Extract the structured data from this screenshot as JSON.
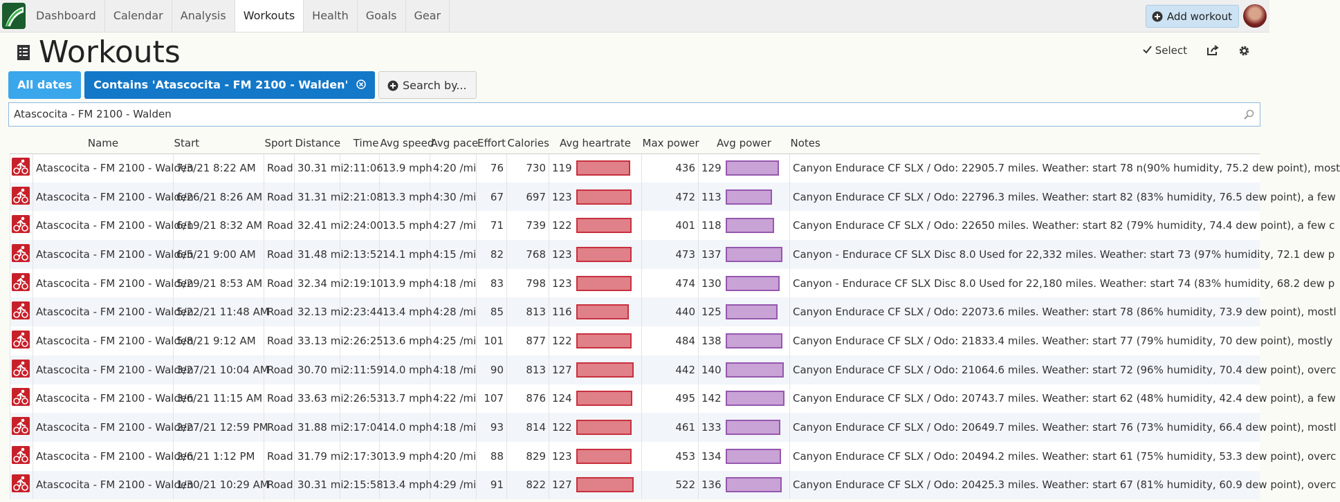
{
  "nav": {
    "tabs": [
      "Dashboard",
      "Calendar",
      "Analysis",
      "Workouts",
      "Health",
      "Goals",
      "Gear"
    ],
    "add_button": "Add workout"
  },
  "header": {
    "title": "Workouts",
    "select": "Select"
  },
  "filters": [
    "All dates",
    "Contains 'Atascocita - FM 2100 - Walden'",
    "Search by..."
  ],
  "search": "Atascocita - FM 2100 - Walden",
  "table": {
    "columns": [
      "Name",
      "Start",
      "Sport",
      "Distance",
      "Time",
      "Avg speed",
      "Avg pace",
      "Effort",
      "Calories",
      "Avg heartrate",
      "Max power",
      "Avg power",
      "Notes"
    ],
    "rows": [
      [
        "Atascocita - FM 2100 - Walden",
        "7/3/21 8:22 AM",
        "Road",
        "30.31 mi",
        "2:11:06",
        "13.9 mph",
        "4:20 /mi",
        76,
        730,
        119,
        436,
        129,
        "Canyon Endurace CF SLX / Odo: 22905.7 miles. Weather: start 78 n(90% humidity, 75.2 dew point), most"
      ],
      [
        "Atascocita - FM 2100 - Walden",
        "6/26/21 8:26 AM",
        "Road",
        "31.31 mi",
        "2:21:08",
        "13.3 mph",
        "4:30 /mi",
        67,
        697,
        123,
        472,
        113,
        "Canyon Endurace CF SLX / Odo: 22796.3 miles. Weather: start 82 (83% humidity, 76.5 dew point), a few"
      ],
      [
        "Atascocita - FM 2100 - Walden",
        "6/19/21 8:32 AM",
        "Road",
        "32.41 mi",
        "2:24:00",
        "13.5 mph",
        "4:27 /mi",
        71,
        739,
        122,
        401,
        118,
        "Canyon Endurace CF SLX / Odo: 22650 miles. Weather: start 82 (79% humidity, 74.4 dew point), a few c"
      ],
      [
        "Atascocita - FM 2100 - Walden",
        "6/5/21 9:00 AM",
        "Road",
        "31.48 mi",
        "2:13:52",
        "14.1 mph",
        "4:15 /mi",
        82,
        768,
        123,
        473,
        137,
        "Canyon - Endurace CF SLX Disc 8.0 Used for 22,332 miles. Weather: start 73 (97% humidity, 72.1 dew p"
      ],
      [
        "Atascocita - FM 2100 - Walden",
        "5/29/21 8:53 AM",
        "Road",
        "32.34 mi",
        "2:19:10",
        "13.9 mph",
        "4:18 /mi",
        83,
        798,
        123,
        474,
        130,
        "Canyon - Endurace CF SLX Disc 8.0 Used for 22,180 miles. Weather: start 74 (83% humidity, 68.2 dew p"
      ],
      [
        "Atascocita - FM 2100 - Walden",
        "5/22/21 11:48 AM",
        "Road",
        "32.13 mi",
        "2:23:44",
        "13.4 mph",
        "4:28 /mi",
        85,
        813,
        116,
        440,
        125,
        "Canyon Endurace CF SLX / Odo: 22073.6 miles. Weather: start 78 (86% humidity, 73.9 dew point), mostl"
      ],
      [
        "Atascocita - FM 2100 - Walden",
        "5/8/21 9:12 AM",
        "Road",
        "33.13 mi",
        "2:26:25",
        "13.6 mph",
        "4:25 /mi",
        101,
        877,
        122,
        484,
        138,
        "Canyon Endurace CF SLX / Odo: 21833.4 miles. Weather: start 77 (79% humidity, 70 dew point), mostly"
      ],
      [
        "Atascocita - FM 2100 - Walden",
        "3/27/21 10:04 AM",
        "Road",
        "30.70 mi",
        "2:11:59",
        "14.0 mph",
        "4:18 /mi",
        90,
        813,
        127,
        442,
        140,
        "Canyon Endurace CF SLX / Odo: 21064.6 miles. Weather: start 72 (96% humidity, 70.4 dew point), overc"
      ],
      [
        "Atascocita - FM 2100 - Walden",
        "3/6/21 11:15 AM",
        "Road",
        "33.63 mi",
        "2:26:53",
        "13.7 mph",
        "4:22 /mi",
        107,
        876,
        124,
        495,
        142,
        "Canyon Endurace CF SLX / Odo: 20743.7 miles. Weather: start 62 (48% humidity, 42.4 dew point), a few"
      ],
      [
        "Atascocita - FM 2100 - Walden",
        "2/27/21 12:59 PM",
        "Road",
        "31.88 mi",
        "2:17:04",
        "14.0 mph",
        "4:18 /mi",
        93,
        814,
        122,
        461,
        133,
        "Canyon Endurace CF SLX / Odo: 20649.7 miles. Weather: start 76 (73% humidity, 66.4 dew point), mostl"
      ],
      [
        "Atascocita - FM 2100 - Walden",
        "2/6/21 1:12 PM",
        "Road",
        "31.79 mi",
        "2:17:30",
        "13.9 mph",
        "4:20 /mi",
        88,
        829,
        123,
        453,
        134,
        "Canyon Endurace CF SLX / Odo: 20494.2 miles. Weather: start 61 (75% humidity, 53.3 dew point), overc"
      ],
      [
        "Atascocita - FM 2100 - Walden",
        "1/30/21 10:29 AM",
        "Road",
        "30.31 mi",
        "2:15:58",
        "13.4 mph",
        "4:29 /mi",
        91,
        822,
        127,
        522,
        136,
        "Canyon Endurace CF SLX / Odo: 20425.3 miles. Weather: start 67 (81% humidity, 60.9 dew point), overc"
      ]
    ]
  }
}
